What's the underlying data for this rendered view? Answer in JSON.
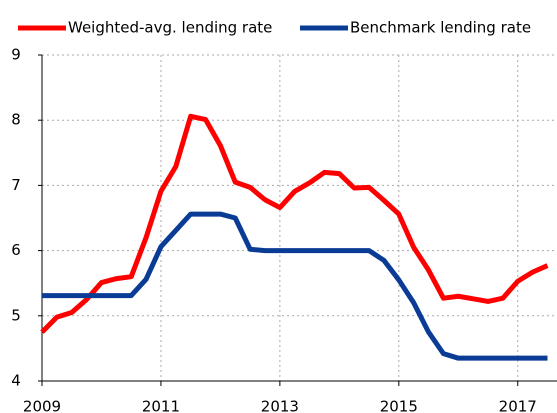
{
  "chart_data": {
    "type": "line",
    "x": [
      2009,
      2009.25,
      2009.5,
      2009.75,
      2010,
      2010.25,
      2010.5,
      2010.75,
      2011,
      2011.25,
      2011.5,
      2011.75,
      2012,
      2012.25,
      2012.5,
      2012.75,
      2013,
      2013.25,
      2013.5,
      2013.75,
      2014,
      2014.25,
      2014.5,
      2014.75,
      2015,
      2015.25,
      2015.5,
      2015.75,
      2016,
      2016.25,
      2016.5,
      2016.75,
      2017,
      2017.25,
      2017.5
    ],
    "series": [
      {
        "name": "Weighted-avg. lending rate",
        "color": "#ff0000",
        "values": [
          4.75,
          4.98,
          5.05,
          5.25,
          5.51,
          5.57,
          5.6,
          6.2,
          6.91,
          7.29,
          8.06,
          8.01,
          7.61,
          7.05,
          6.97,
          6.78,
          6.66,
          6.91,
          7.04,
          7.2,
          7.18,
          6.96,
          6.97,
          6.77,
          6.56,
          6.05,
          5.7,
          5.27,
          5.3,
          5.26,
          5.22,
          5.27,
          5.53,
          5.67,
          5.77
        ]
      },
      {
        "name": "Benchmark lending rate",
        "color": "#0a3c96",
        "values": [
          5.31,
          5.31,
          5.31,
          5.31,
          5.31,
          5.31,
          5.31,
          5.56,
          6.06,
          6.31,
          6.56,
          6.56,
          6.56,
          6.5,
          6.02,
          6.0,
          6.0,
          6.0,
          6.0,
          6.0,
          6.0,
          6.0,
          6.0,
          5.85,
          5.55,
          5.2,
          4.75,
          4.42,
          4.35,
          4.35,
          4.35,
          4.35,
          4.35,
          4.35,
          4.35
        ]
      }
    ],
    "xlim": [
      2009,
      2017.66
    ],
    "xticks": [
      2009,
      2011,
      2013,
      2015,
      2017
    ],
    "ylim": [
      4,
      9
    ],
    "yticks": [
      4,
      5,
      6,
      7,
      8,
      9
    ],
    "grid": true,
    "legend": "top"
  }
}
